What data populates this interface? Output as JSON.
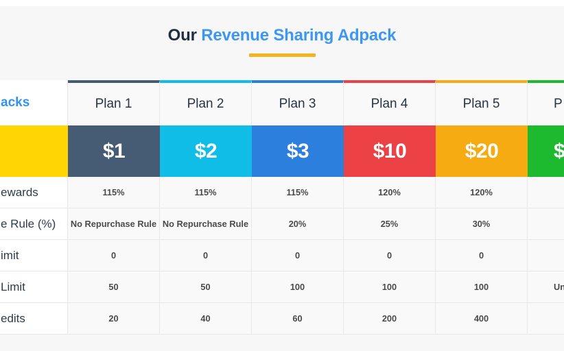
{
  "header": {
    "title_prefix": "Our",
    "title_main": "Revenue Sharing Adpack",
    "underline_color": "#f5b41e"
  },
  "table": {
    "label_column": {
      "header": "acks",
      "price_cell_color": "#ffd502",
      "rows": [
        "ewards",
        "e Rule (%)",
        "imit",
        "Limit",
        "edits"
      ]
    },
    "plans": [
      {
        "name": "Plan 1",
        "price": "$1",
        "color": "#465c74",
        "values": [
          "115%",
          "No Repurchase Rule",
          "0",
          "50",
          "20"
        ]
      },
      {
        "name": "Plan 2",
        "price": "$2",
        "color": "#0fbde6",
        "values": [
          "115%",
          "No Repurchase Rule",
          "0",
          "50",
          "40"
        ]
      },
      {
        "name": "Plan 3",
        "price": "$3",
        "color": "#2d7fdd",
        "values": [
          "115%",
          "20%",
          "0",
          "100",
          "60"
        ]
      },
      {
        "name": "Plan 4",
        "price": "$10",
        "color": "#ec4245",
        "values": [
          "120%",
          "25%",
          "0",
          "100",
          "200"
        ]
      },
      {
        "name": "Plan 5",
        "price": "$20",
        "color": "#f6ab12",
        "values": [
          "120%",
          "30%",
          "0",
          "100",
          "400"
        ]
      },
      {
        "name": "P",
        "price": "$",
        "color": "#1db92f",
        "values": [
          "",
          "",
          "",
          "Un",
          ""
        ]
      }
    ]
  }
}
